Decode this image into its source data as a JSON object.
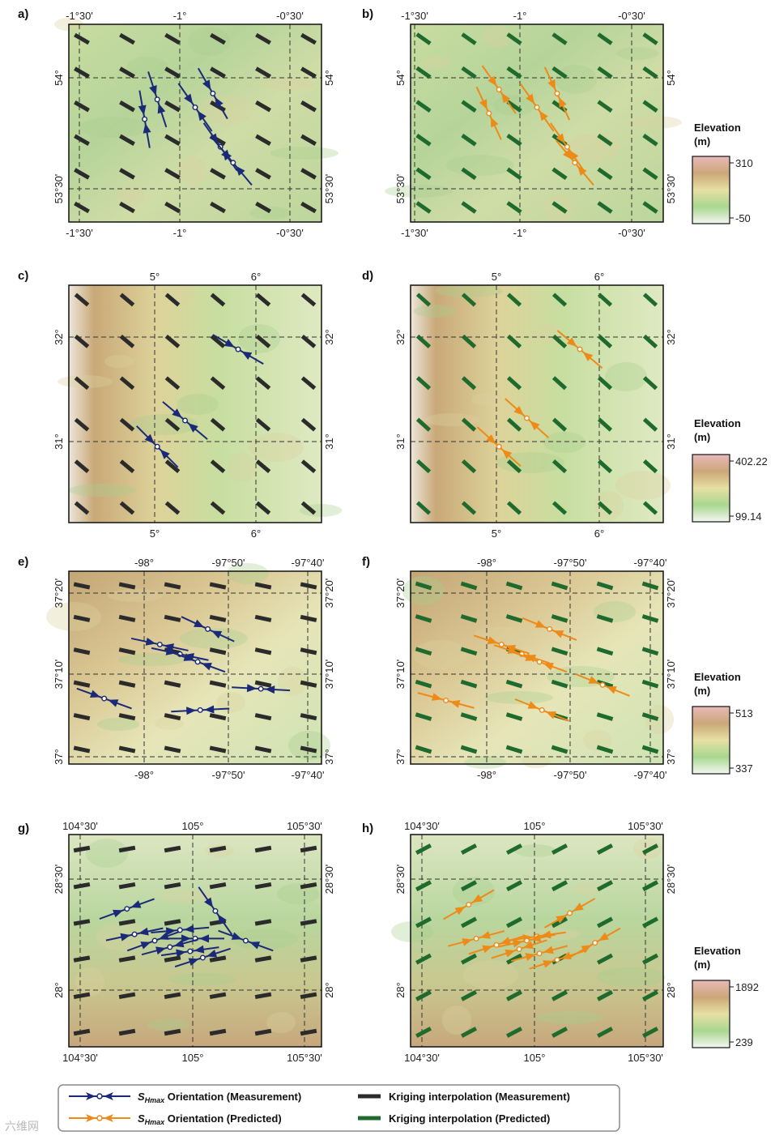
{
  "colors": {
    "measurement_arrow": "#1b2a78",
    "predicted_arrow": "#ee8a17",
    "kriging_measurement": "#2b2b2b",
    "kriging_predicted": "#1f6b2e"
  },
  "chart_data": [
    {
      "type": "map",
      "panel": "a)",
      "variant": "measurement",
      "xticks": [
        "-1°30'",
        "-1°",
        "-0°30'"
      ],
      "yticks": [
        "54°",
        "53°30'"
      ],
      "colorbar": {
        "title_line1": "Elevation",
        "title_line2": "(m)",
        "max": "310",
        "min": "-50"
      },
      "kriging_orientation_deg": -30,
      "shmax": [
        {
          "row": 0.38,
          "col": 0.35,
          "angle": -72
        },
        {
          "row": 0.48,
          "col": 0.3,
          "angle": -80
        },
        {
          "row": 0.42,
          "col": 0.5,
          "angle": -55
        },
        {
          "row": 0.35,
          "col": 0.57,
          "angle": -60
        },
        {
          "row": 0.62,
          "col": 0.6,
          "angle": -55
        },
        {
          "row": 0.7,
          "col": 0.65,
          "angle": -50
        }
      ]
    },
    {
      "type": "map",
      "panel": "b)",
      "variant": "predicted",
      "xticks": [
        "-1°30'",
        "-1°",
        "-0°30'"
      ],
      "yticks": [
        "54°",
        "53°30'"
      ],
      "kriging_orientation_deg": -35,
      "shmax": [
        {
          "row": 0.33,
          "col": 0.35,
          "angle": -55
        },
        {
          "row": 0.45,
          "col": 0.31,
          "angle": -65
        },
        {
          "row": 0.42,
          "col": 0.5,
          "angle": -55
        },
        {
          "row": 0.35,
          "col": 0.58,
          "angle": -65
        },
        {
          "row": 0.62,
          "col": 0.62,
          "angle": -55
        },
        {
          "row": 0.7,
          "col": 0.65,
          "angle": -50
        }
      ]
    },
    {
      "type": "map",
      "panel": "c)",
      "variant": "measurement",
      "xticks": [
        "5°",
        "6°"
      ],
      "yticks": [
        "32°",
        "31°"
      ],
      "colorbar": {
        "title_line1": "Elevation",
        "title_line2": "(m)",
        "max": "402.22",
        "min": "99.14"
      },
      "kriging_orientation_deg": -40,
      "shmax": [
        {
          "row": 0.27,
          "col": 0.67,
          "angle": -30
        },
        {
          "row": 0.57,
          "col": 0.46,
          "angle": -40
        },
        {
          "row": 0.68,
          "col": 0.35,
          "angle": -45
        }
      ]
    },
    {
      "type": "map",
      "panel": "d)",
      "variant": "predicted",
      "xticks": [
        "5°",
        "6°"
      ],
      "yticks": [
        "32°",
        "31°"
      ],
      "kriging_orientation_deg": -42,
      "shmax": [
        {
          "row": 0.27,
          "col": 0.67,
          "angle": -40
        },
        {
          "row": 0.56,
          "col": 0.46,
          "angle": -42
        },
        {
          "row": 0.68,
          "col": 0.35,
          "angle": -42
        }
      ]
    },
    {
      "type": "map",
      "panel": "e)",
      "variant": "measurement",
      "xticks": [
        "-98°",
        "-97°50'",
        "-97°40'"
      ],
      "yticks": [
        "37°20'",
        "37°10'",
        "37°"
      ],
      "colorbar": {
        "title_line1": "Elevation",
        "title_line2": "(m)",
        "max": "513",
        "min": "337"
      },
      "kriging_orientation_deg": -12,
      "shmax": [
        {
          "row": 0.3,
          "col": 0.55,
          "angle": -25
        },
        {
          "row": 0.38,
          "col": 0.36,
          "angle": -12
        },
        {
          "row": 0.43,
          "col": 0.44,
          "angle": -12
        },
        {
          "row": 0.47,
          "col": 0.51,
          "angle": -20
        },
        {
          "row": 0.61,
          "col": 0.76,
          "angle": -3
        },
        {
          "row": 0.66,
          "col": 0.14,
          "angle": -20
        },
        {
          "row": 0.72,
          "col": 0.52,
          "angle": 3
        }
      ]
    },
    {
      "type": "map",
      "panel": "f)",
      "variant": "predicted",
      "xticks": [
        "-98°",
        "-97°50'",
        "-97°40'"
      ],
      "yticks": [
        "37°20'",
        "37°10'",
        "37°"
      ],
      "kriging_orientation_deg": -17,
      "shmax": [
        {
          "row": 0.3,
          "col": 0.55,
          "angle": -22
        },
        {
          "row": 0.38,
          "col": 0.36,
          "angle": -18
        },
        {
          "row": 0.43,
          "col": 0.44,
          "angle": -18
        },
        {
          "row": 0.47,
          "col": 0.51,
          "angle": -20
        },
        {
          "row": 0.59,
          "col": 0.76,
          "angle": -22
        },
        {
          "row": 0.67,
          "col": 0.14,
          "angle": -15
        },
        {
          "row": 0.72,
          "col": 0.52,
          "angle": -22
        }
      ]
    },
    {
      "type": "map",
      "panel": "g)",
      "variant": "measurement",
      "xticks": [
        "104°30'",
        "105°",
        "105°30'"
      ],
      "yticks": [
        "28°30'",
        "28°"
      ],
      "colorbar": {
        "title_line1": "Elevation",
        "title_line2": "(m)",
        "max": "1892",
        "min": "239"
      },
      "kriging_orientation_deg": 10,
      "shmax": [
        {
          "row": 0.35,
          "col": 0.23,
          "angle": 20
        },
        {
          "row": 0.36,
          "col": 0.58,
          "angle": -55
        },
        {
          "row": 0.47,
          "col": 0.26,
          "angle": 12
        },
        {
          "row": 0.5,
          "col": 0.34,
          "angle": 20
        },
        {
          "row": 0.49,
          "col": 0.5,
          "angle": 0
        },
        {
          "row": 0.45,
          "col": 0.44,
          "angle": 5
        },
        {
          "row": 0.53,
          "col": 0.4,
          "angle": 15
        },
        {
          "row": 0.55,
          "col": 0.48,
          "angle": 8
        },
        {
          "row": 0.58,
          "col": 0.53,
          "angle": 18
        },
        {
          "row": 0.5,
          "col": 0.7,
          "angle": -20
        }
      ]
    },
    {
      "type": "map",
      "panel": "h)",
      "variant": "predicted",
      "xticks": [
        "104°30'",
        "105°",
        "105°30'"
      ],
      "yticks": [
        "28°30'",
        "28°"
      ],
      "kriging_orientation_deg": 28,
      "shmax": [
        {
          "row": 0.33,
          "col": 0.23,
          "angle": 30
        },
        {
          "row": 0.37,
          "col": 0.63,
          "angle": 30
        },
        {
          "row": 0.49,
          "col": 0.26,
          "angle": 15
        },
        {
          "row": 0.52,
          "col": 0.34,
          "angle": 18
        },
        {
          "row": 0.48,
          "col": 0.5,
          "angle": 8
        },
        {
          "row": 0.5,
          "col": 0.46,
          "angle": 12
        },
        {
          "row": 0.54,
          "col": 0.43,
          "angle": 18
        },
        {
          "row": 0.56,
          "col": 0.51,
          "angle": 15
        },
        {
          "row": 0.59,
          "col": 0.58,
          "angle": 18
        },
        {
          "row": 0.51,
          "col": 0.73,
          "angle": 30
        }
      ]
    }
  ],
  "legend": {
    "meas_arrow_prefix": "S",
    "meas_arrow_sub": "Hmax",
    "meas_arrow_suffix": " Orientation (Measurement)",
    "pred_arrow_prefix": "S",
    "pred_arrow_sub": "Hmax",
    "pred_arrow_suffix": " Orientation (Predicted)",
    "kriging_meas": "Kriging interpolation (Measurement)",
    "kriging_pred": "Kriging interpolation (Predicted)"
  },
  "watermark": "六维网"
}
